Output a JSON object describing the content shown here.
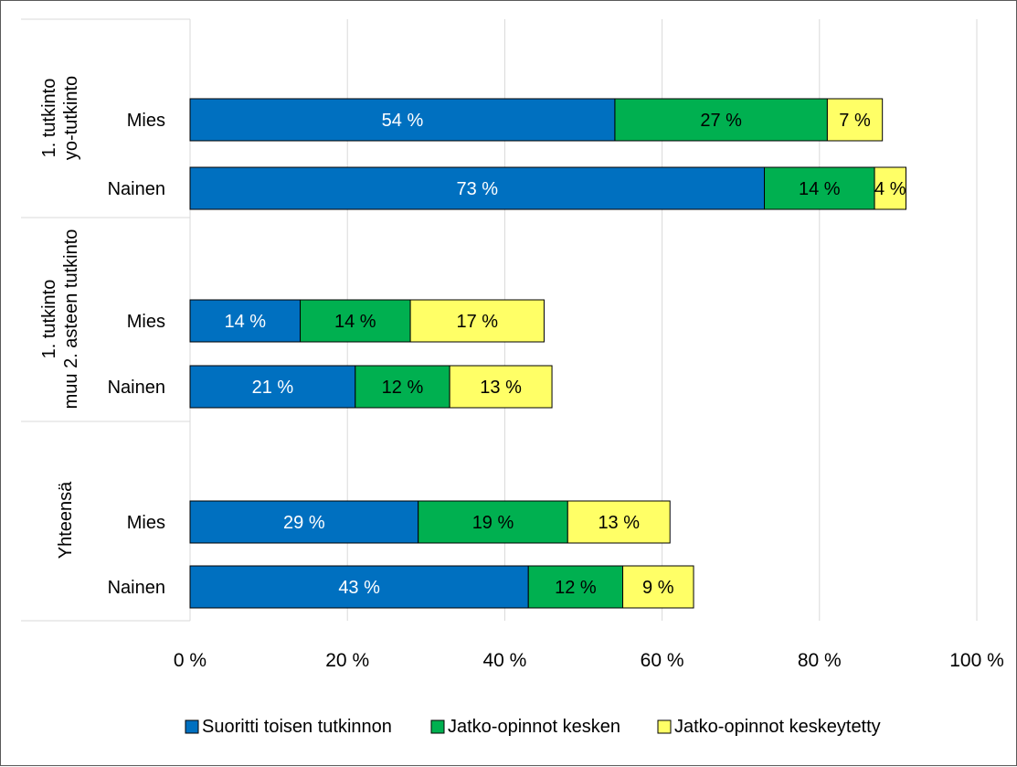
{
  "chart_data": {
    "type": "bar",
    "orientation": "horizontal",
    "stacked": true,
    "title": "",
    "xlabel": "",
    "ylabel": "",
    "xlim": [
      0,
      100
    ],
    "x_ticks": [
      0,
      20,
      40,
      60,
      80,
      100
    ],
    "x_tick_labels": [
      "0 %",
      "20 %",
      "40 %",
      "60 %",
      "80 %",
      "100 %"
    ],
    "grid": true,
    "legend_position": "bottom",
    "groups": [
      {
        "label_lines": [
          "1. tutkinto",
          "yo-tutkinto"
        ],
        "categories": [
          "Mies",
          "Nainen"
        ]
      },
      {
        "label_lines": [
          "1. tutkinto",
          "muu 2. asteen tutkinto"
        ],
        "categories": [
          "Mies",
          "Nainen"
        ]
      },
      {
        "label_lines": [
          "Yhteensä"
        ],
        "categories": [
          "Mies",
          "Nainen"
        ]
      }
    ],
    "series": [
      {
        "name": "Suoritti toisen tutkinnon",
        "color": "#0070c0",
        "label_color": "#ffffff",
        "values": [
          54,
          73,
          14,
          21,
          29,
          43
        ],
        "labels": [
          "54 %",
          "73 %",
          "14 %",
          "21 %",
          "29 %",
          "43 %"
        ]
      },
      {
        "name": "Jatko-opinnot kesken",
        "color": "#00b050",
        "label_color": "#000000",
        "values": [
          27,
          14,
          14,
          12,
          19,
          12
        ],
        "labels": [
          "27 %",
          "14 %",
          "14 %",
          "12 %",
          "19 %",
          "12 %"
        ]
      },
      {
        "name": "Jatko-opinnot keskeytetty",
        "color": "#ffff66",
        "label_color": "#000000",
        "values": [
          7,
          4,
          17,
          13,
          13,
          9
        ],
        "labels": [
          "7 %",
          "4 %",
          "17 %",
          "13 %",
          "13 %",
          "9 %"
        ]
      }
    ]
  }
}
